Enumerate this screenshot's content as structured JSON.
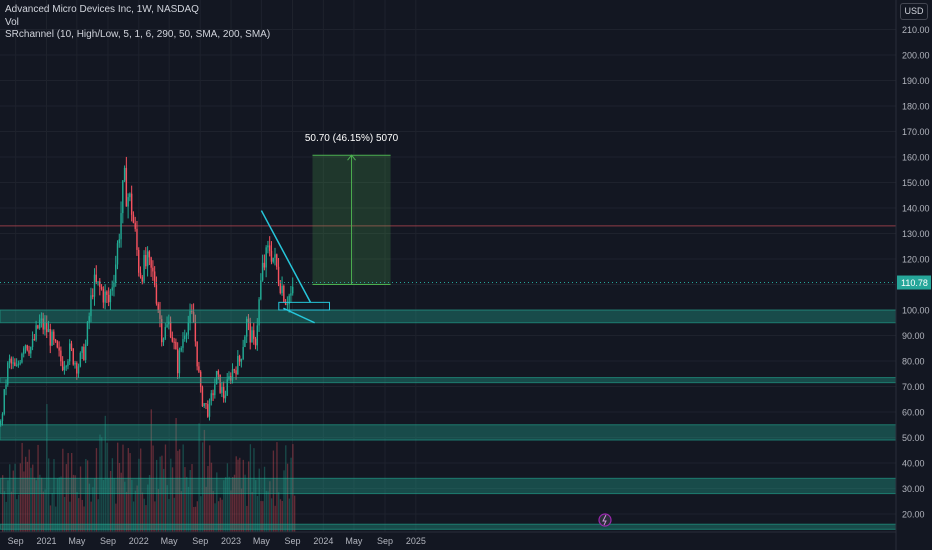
{
  "chart_data": {
    "type": "candlestick",
    "title": "Advanced Micro Devices Inc, 1W, NASDAQ",
    "indicators": [
      "Vol",
      "SRchannel (10, High/Low, 5, 1, 6, 290, 50, SMA, 200, SMA)"
    ],
    "currency": "USD",
    "last_price": "110.78",
    "ylim": [
      14,
      222
    ],
    "y_ticks": [
      "20.00",
      "30.00",
      "40.00",
      "50.00",
      "60.00",
      "70.00",
      "80.00",
      "90.00",
      "100.00",
      "110.00",
      "120.00",
      "130.00",
      "140.00",
      "150.00",
      "160.00",
      "170.00",
      "180.00",
      "190.00",
      "200.00",
      "210.00"
    ],
    "x_ticks": [
      "Sep",
      "2021",
      "May",
      "Sep",
      "2022",
      "May",
      "Sep",
      "2023",
      "May",
      "Sep",
      "2024",
      "May",
      "Sep",
      "2025"
    ],
    "sr_zones": [
      {
        "low": 95,
        "high": 100
      },
      {
        "low": 71.5,
        "high": 73.5
      },
      {
        "low": 49,
        "high": 55
      },
      {
        "low": 28,
        "high": 34
      },
      {
        "low": 14,
        "high": 16
      }
    ],
    "resistance_line": 133,
    "price_path": [
      {
        "date": "2020-07",
        "price": 55
      },
      {
        "date": "2020-08",
        "price": 80
      },
      {
        "date": "2020-09",
        "price": 76
      },
      {
        "date": "2020-10",
        "price": 88
      },
      {
        "date": "2020-11",
        "price": 85
      },
      {
        "date": "2020-12",
        "price": 95
      },
      {
        "date": "2021-01",
        "price": 92
      },
      {
        "date": "2021-02",
        "price": 85
      },
      {
        "date": "2021-03",
        "price": 79
      },
      {
        "date": "2021-04",
        "price": 84
      },
      {
        "date": "2021-05",
        "price": 78
      },
      {
        "date": "2021-06",
        "price": 85
      },
      {
        "date": "2021-07",
        "price": 110
      },
      {
        "date": "2021-08",
        "price": 108
      },
      {
        "date": "2021-09",
        "price": 103
      },
      {
        "date": "2021-10",
        "price": 120
      },
      {
        "date": "2021-11",
        "price": 150
      },
      {
        "date": "2021-12",
        "price": 140
      },
      {
        "date": "2022-01",
        "price": 115
      },
      {
        "date": "2022-02",
        "price": 118
      },
      {
        "date": "2022-03",
        "price": 112
      },
      {
        "date": "2022-04",
        "price": 90
      },
      {
        "date": "2022-05",
        "price": 95
      },
      {
        "date": "2022-06",
        "price": 78
      },
      {
        "date": "2022-07",
        "price": 94
      },
      {
        "date": "2022-08",
        "price": 97
      },
      {
        "date": "2022-09",
        "price": 66
      },
      {
        "date": "2022-10",
        "price": 60
      },
      {
        "date": "2022-11",
        "price": 74
      },
      {
        "date": "2022-12",
        "price": 66
      },
      {
        "date": "2023-01",
        "price": 76
      },
      {
        "date": "2023-02",
        "price": 80
      },
      {
        "date": "2023-03",
        "price": 95
      },
      {
        "date": "2023-04",
        "price": 85
      },
      {
        "date": "2023-05",
        "price": 115
      },
      {
        "date": "2023-06",
        "price": 125
      },
      {
        "date": "2023-07",
        "price": 115
      },
      {
        "date": "2023-08",
        "price": 105
      },
      {
        "date": "2023-09",
        "price": 106
      }
    ],
    "volume_color_up": "#22ab94",
    "volume_color_down": "#f7525f",
    "triangle": {
      "upper_line": [
        {
          "date": "2023-05",
          "price": 139
        },
        {
          "date": "2023-09",
          "price": 103
        }
      ],
      "lower_line": [
        {
          "date": "2023-05",
          "price": 103
        },
        {
          "date": "2023-08",
          "price": 95
        }
      ]
    },
    "breakout_box": {
      "date_start": "2023-04",
      "date_end": "2023-09",
      "low": 100,
      "high": 103
    },
    "projection": {
      "label": "50.70 (46.15%) 5070",
      "from": 110,
      "to": 160.7,
      "date_start": "2023-12",
      "date_end": "2024-10"
    },
    "colors": {
      "background": "#131722",
      "grid": "#1e222d",
      "up": "#22ab94",
      "down": "#f7525f",
      "zone": "#22ab94",
      "pattern": "#26c6da",
      "projection": "#4caf50",
      "last_price": "#26a69a",
      "resistance": "#b04550"
    }
  }
}
